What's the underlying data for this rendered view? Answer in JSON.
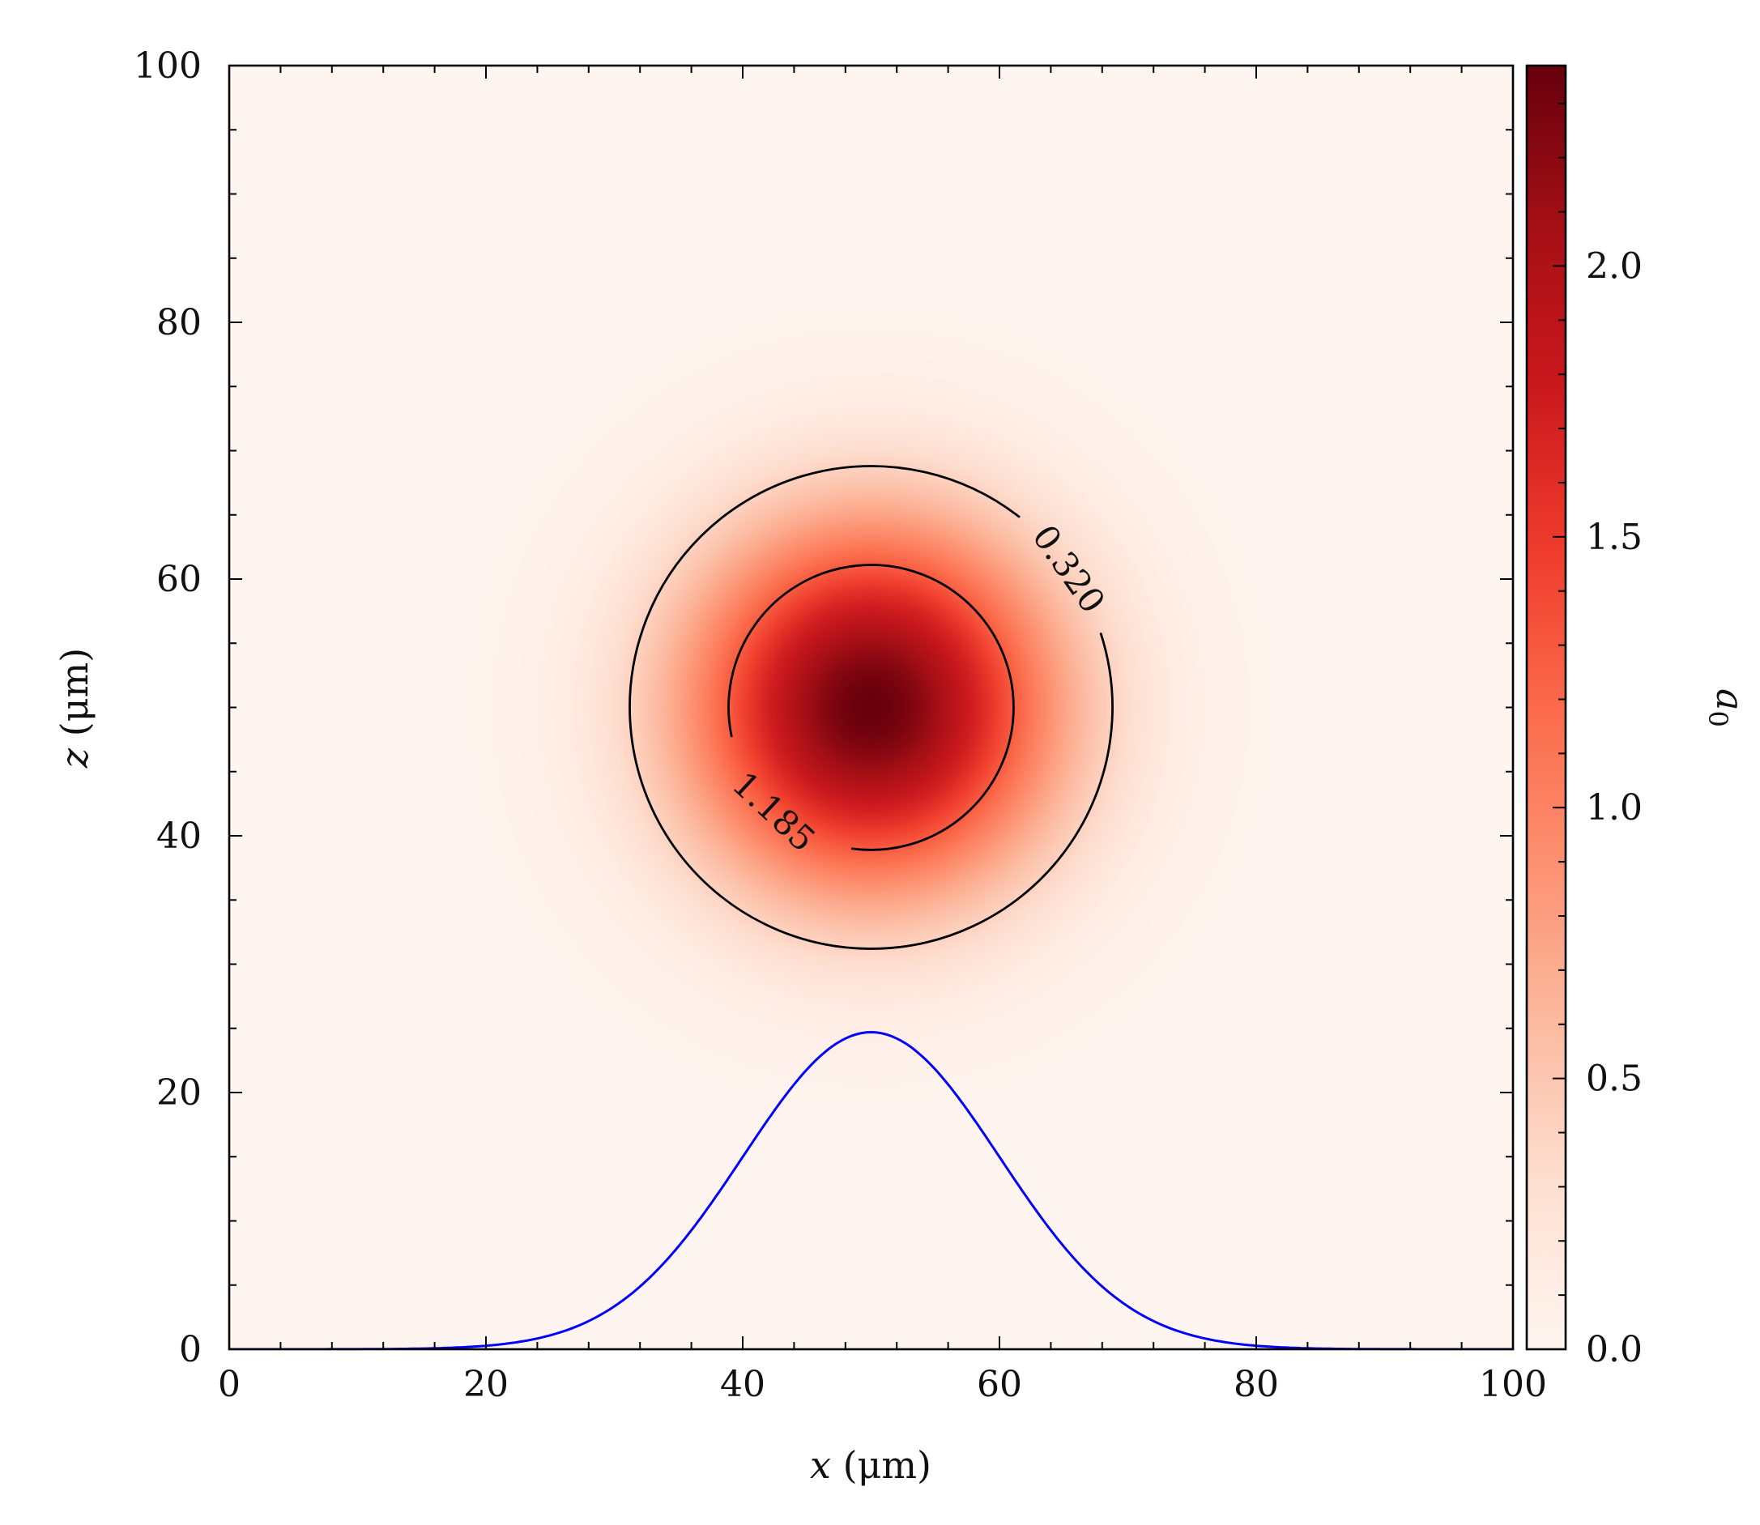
{
  "chart_data": {
    "type": "heatmap",
    "title": "",
    "xlabel": {
      "var": "x",
      "unit": " (μm)"
    },
    "ylabel": {
      "var": "z",
      "unit": " (μm)"
    },
    "xlim": [
      0,
      100
    ],
    "ylim": [
      0,
      100
    ],
    "x_ticks": [
      0,
      20,
      40,
      60,
      80,
      100
    ],
    "y_ticks": [
      0,
      20,
      40,
      60,
      80,
      100
    ],
    "colormap": "Reds",
    "field": {
      "center": [
        50,
        50
      ],
      "peak": 2.37,
      "gaussian_sigma": 10
    },
    "colorbar": {
      "label": "a",
      "label_sub": "0",
      "vmin": 0.0,
      "vmax": 2.37,
      "ticks": [
        0.0,
        0.5,
        1.0,
        1.5,
        2.0
      ],
      "tick_labels": [
        "0.0",
        "0.5",
        "1.0",
        "1.5",
        "2.0"
      ]
    },
    "contours": [
      {
        "level": 0.32,
        "label": "0.320",
        "radius": 18.8,
        "gap_deg": [
          18,
          52
        ],
        "label_angle_deg": 35
      },
      {
        "level": 1.185,
        "label": "1.185",
        "radius": 11.1,
        "gap_deg": [
          192,
          262
        ],
        "label_angle_deg": 227
      }
    ],
    "line_series": {
      "color": "#0000ff",
      "peak": 24.7,
      "center": 50,
      "sigma": 10
    }
  }
}
